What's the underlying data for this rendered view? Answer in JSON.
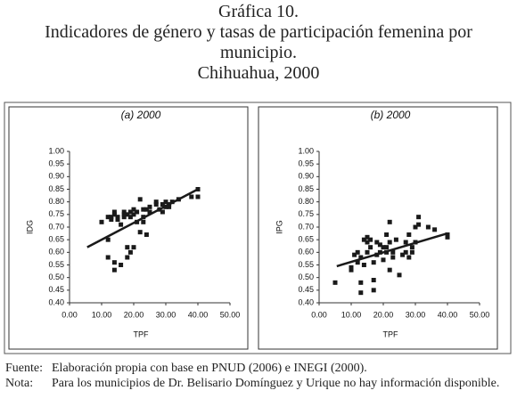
{
  "header": {
    "lines": [
      "Gráfica 10.",
      "Indicadores de género y tasas de participación femenina por municipio.",
      "Chihuahua, 2000"
    ]
  },
  "chart_data": [
    {
      "type": "scatter",
      "title": "(a) 2000",
      "x_label": "TPF",
      "y_label": "IDG",
      "xlim": [
        0,
        50
      ],
      "ylim": [
        0.4,
        1.0
      ],
      "xticks": [
        {
          "value": 0,
          "label": "0.00"
        },
        {
          "value": 10,
          "label": "10.00"
        },
        {
          "value": 20,
          "label": "20.00"
        },
        {
          "value": 30,
          "label": "30.00"
        },
        {
          "value": 40,
          "label": "40.00"
        },
        {
          "value": 50,
          "label": "50.00"
        }
      ],
      "yticks": [
        {
          "value": 0.4,
          "label": "0.40"
        },
        {
          "value": 0.45,
          "label": "0.45"
        },
        {
          "value": 0.5,
          "label": "0.50"
        },
        {
          "value": 0.55,
          "label": "0.55"
        },
        {
          "value": 0.6,
          "label": "0.60"
        },
        {
          "value": 0.65,
          "label": "0.65"
        },
        {
          "value": 0.7,
          "label": "0.70"
        },
        {
          "value": 0.75,
          "label": "0.75"
        },
        {
          "value": 0.8,
          "label": "0.80"
        },
        {
          "value": 0.85,
          "label": "0.85"
        },
        {
          "value": 0.9,
          "label": "0.90"
        },
        {
          "value": 0.95,
          "label": "0.95"
        },
        {
          "value": 1.0,
          "label": "1.00"
        }
      ],
      "series": [
        {
          "color": "#1a1a1a",
          "x": [
            10,
            12,
            12,
            12,
            13,
            13,
            14,
            14,
            14,
            14,
            15,
            15,
            16,
            16,
            17,
            17,
            17,
            18,
            18,
            18,
            19,
            19,
            19,
            20,
            20,
            20,
            21,
            21,
            22,
            22,
            23,
            23,
            23,
            24,
            24,
            25,
            25,
            27,
            27,
            28,
            29,
            29,
            30,
            30,
            31,
            31,
            32,
            34,
            38,
            40,
            40
          ],
          "y": [
            0.72,
            0.74,
            0.65,
            0.58,
            0.74,
            0.73,
            0.75,
            0.76,
            0.56,
            0.53,
            0.73,
            0.74,
            0.71,
            0.55,
            0.74,
            0.75,
            0.76,
            0.75,
            0.62,
            0.58,
            0.76,
            0.74,
            0.6,
            0.75,
            0.77,
            0.62,
            0.72,
            0.76,
            0.81,
            0.68,
            0.74,
            0.77,
            0.72,
            0.77,
            0.67,
            0.78,
            0.76,
            0.8,
            0.79,
            0.77,
            0.76,
            0.79,
            0.78,
            0.8,
            0.79,
            0.78,
            0.8,
            0.81,
            0.82,
            0.82,
            0.85
          ]
        }
      ],
      "trend_line": {
        "color": "#1a1a1a",
        "x": [
          5.5,
          40
        ],
        "y": [
          0.62,
          0.85
        ]
      }
    },
    {
      "type": "scatter",
      "title": "(b) 2000",
      "x_label": "TPF",
      "y_label": "IPG",
      "xlim": [
        0,
        50
      ],
      "ylim": [
        0.4,
        1.0
      ],
      "xticks": [
        {
          "value": 0,
          "label": "0.00"
        },
        {
          "value": 10,
          "label": "10.00"
        },
        {
          "value": 20,
          "label": "20.00"
        },
        {
          "value": 30,
          "label": "30.00"
        },
        {
          "value": 40,
          "label": "40.00"
        },
        {
          "value": 50,
          "label": "50.00"
        }
      ],
      "yticks": [
        {
          "value": 0.4,
          "label": "0.40"
        },
        {
          "value": 0.45,
          "label": "0.45"
        },
        {
          "value": 0.5,
          "label": "0.50"
        },
        {
          "value": 0.55,
          "label": "0.55"
        },
        {
          "value": 0.6,
          "label": "0.60"
        },
        {
          "value": 0.65,
          "label": "0.65"
        },
        {
          "value": 0.7,
          "label": "0.70"
        },
        {
          "value": 0.75,
          "label": "0.75"
        },
        {
          "value": 0.8,
          "label": "0.80"
        },
        {
          "value": 0.85,
          "label": "0.85"
        },
        {
          "value": 0.9,
          "label": "0.90"
        },
        {
          "value": 0.95,
          "label": "0.95"
        },
        {
          "value": 1.0,
          "label": "1.00"
        }
      ],
      "series": [
        {
          "color": "#1a1a1a",
          "x": [
            5,
            10,
            10,
            11,
            12,
            12,
            13,
            13,
            13,
            14,
            14,
            15,
            15,
            15,
            16,
            16,
            17,
            17,
            17,
            18,
            18,
            19,
            19,
            20,
            20,
            21,
            21,
            21,
            22,
            22,
            22,
            23,
            23,
            24,
            25,
            26,
            27,
            27,
            28,
            28,
            29,
            29,
            30,
            30,
            31,
            31,
            34,
            36,
            40,
            40
          ],
          "y": [
            0.48,
            0.54,
            0.53,
            0.59,
            0.6,
            0.56,
            0.48,
            0.44,
            0.58,
            0.65,
            0.55,
            0.66,
            0.64,
            0.6,
            0.65,
            0.62,
            0.56,
            0.45,
            0.49,
            0.64,
            0.59,
            0.63,
            0.6,
            0.62,
            0.57,
            0.67,
            0.62,
            0.6,
            0.72,
            0.64,
            0.53,
            0.6,
            0.58,
            0.65,
            0.51,
            0.59,
            0.6,
            0.64,
            0.67,
            0.58,
            0.62,
            0.6,
            0.7,
            0.64,
            0.71,
            0.74,
            0.7,
            0.69,
            0.67,
            0.66
          ]
        }
      ],
      "trend_line": {
        "color": "#1a1a1a",
        "x": [
          5.5,
          40
        ],
        "y": [
          0.545,
          0.675
        ]
      }
    }
  ],
  "notes": [
    {
      "label": "Fuente:",
      "text": "Elaboración propia con base en PNUD (2006) e INEGI (2000)."
    },
    {
      "label": "Nota:",
      "text": "Para los municipios de Dr. Belisario Domínguez y Urique no hay información disponible."
    }
  ]
}
